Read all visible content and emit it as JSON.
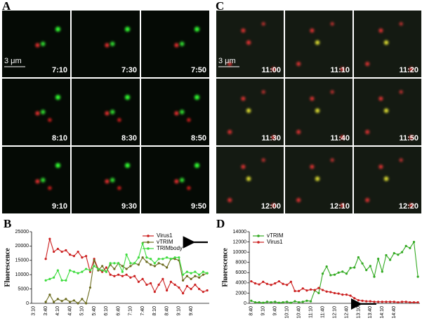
{
  "image_panels": [
    {
      "label": "A",
      "scale_bar": "3 μm",
      "frames": [
        "7:10",
        "7:30",
        "7:50",
        "8:10",
        "8:30",
        "8:50",
        "9:10",
        "9:30",
        "9:50"
      ]
    },
    {
      "label": "C",
      "scale_bar": "3 μm",
      "frames": [
        "11:00",
        "11:10",
        "11:20",
        "11:30",
        "11:40",
        "11:50",
        "12:00",
        "12:10",
        "12:20"
      ]
    }
  ],
  "chart_data": [
    {
      "type": "line",
      "panel_label": "B",
      "y_label": "Fluorescence",
      "categories": [
        "3:10",
        null,
        null,
        "3:40",
        null,
        null,
        "4:10",
        null,
        null,
        "4:40",
        null,
        null,
        "5:10",
        null,
        null,
        "5:40",
        null,
        null,
        "6:10",
        null,
        null,
        "6:40",
        null,
        null,
        "7:10",
        null,
        null,
        "7:40",
        null,
        null,
        "8:10",
        null,
        null,
        "8:40",
        null,
        null,
        "9:10",
        null,
        null,
        "9:40",
        null,
        null,
        null,
        null
      ],
      "series": [
        {
          "name": "Virus1",
          "color": "#cc2020",
          "values": [
            null,
            null,
            null,
            15500,
            22500,
            18000,
            19000,
            18000,
            18500,
            17000,
            16500,
            18000,
            16000,
            16500,
            11000,
            15500,
            12000,
            11000,
            12500,
            10000,
            9500,
            10000,
            9500,
            10000,
            9000,
            9500,
            7500,
            8500,
            6500,
            7000,
            4000,
            6500,
            8500,
            4500,
            7500,
            6500,
            5500,
            3500,
            6000,
            5000,
            6500,
            5000,
            4000,
            4500
          ]
        },
        {
          "name": "vTRIM",
          "color": "#6b6b1e",
          "values": [
            null,
            null,
            null,
            500,
            3000,
            500,
            1500,
            800,
            1500,
            500,
            1000,
            0,
            1500,
            0,
            5500,
            15000,
            11500,
            13000,
            11000,
            13500,
            12000,
            14000,
            13000,
            12000,
            13000,
            14000,
            13500,
            16000,
            14500,
            13500,
            13000,
            14000,
            13500,
            12500,
            15500,
            15500,
            15000,
            8000,
            9500,
            8500,
            9500,
            9000,
            10000,
            10500
          ]
        },
        {
          "name": "TRIMbody",
          "color": "#3ddc3d",
          "values": [
            null,
            null,
            null,
            8000,
            8500,
            9000,
            11500,
            8000,
            8000,
            11500,
            11000,
            10500,
            11000,
            12000,
            11500,
            13000,
            12000,
            11500,
            11000,
            14000,
            14000,
            14000,
            11000,
            17000,
            14000,
            14000,
            16000,
            21000,
            16000,
            15500,
            14000,
            15500,
            15500,
            16000,
            15500,
            16000,
            16000,
            10000,
            11000,
            10500,
            11000,
            10000,
            11000,
            10500
          ]
        }
      ],
      "ylim": [
        0,
        25000
      ],
      "yticks": [
        0,
        5000,
        10000,
        15000,
        20000,
        25000
      ],
      "legend": "top-right"
    },
    {
      "type": "line",
      "panel_label": "D",
      "y_label": "Fluorescence",
      "categories": [
        "8:40",
        null,
        null,
        "9:10",
        null,
        null,
        "9:40",
        null,
        null,
        "10:10",
        null,
        null,
        "10:40",
        null,
        null,
        "11:10",
        null,
        null,
        "11:40",
        null,
        null,
        "12:10",
        null,
        null,
        "12:40",
        null,
        null,
        "13:10",
        null,
        null,
        "13:40",
        null,
        null,
        "14:10",
        null,
        null,
        "14:40",
        null,
        null,
        null,
        null,
        null,
        null
      ],
      "series": [
        {
          "name": "vTRIM",
          "color": "#33aa22",
          "values": [
            500,
            200,
            200,
            100,
            300,
            200,
            300,
            100,
            200,
            300,
            100,
            400,
            200,
            300,
            500,
            400,
            2500,
            2000,
            5800,
            7200,
            5500,
            5600,
            6000,
            6200,
            5800,
            6900,
            7000,
            9000,
            7800,
            6500,
            7300,
            5200,
            8700,
            6200,
            9400,
            8500,
            9800,
            9500,
            10000,
            11200,
            10800,
            12000,
            5200
          ]
        },
        {
          "name": "Virus1",
          "color": "#cc2020",
          "values": [
            4300,
            3900,
            3700,
            4200,
            3800,
            3600,
            3900,
            4300,
            3800,
            3600,
            4200,
            2400,
            2400,
            2900,
            2500,
            2700,
            2600,
            3000,
            2600,
            2300,
            2200,
            2000,
            1900,
            1700,
            1700,
            1500,
            1000,
            600,
            500,
            400,
            400,
            300,
            300,
            300,
            300,
            300,
            300,
            200,
            300,
            300,
            200,
            200,
            200
          ]
        }
      ],
      "ylim": [
        0,
        14000
      ],
      "yticks": [
        0,
        2000,
        4000,
        6000,
        8000,
        10000,
        12000,
        14000
      ],
      "legend": "top-left"
    }
  ]
}
